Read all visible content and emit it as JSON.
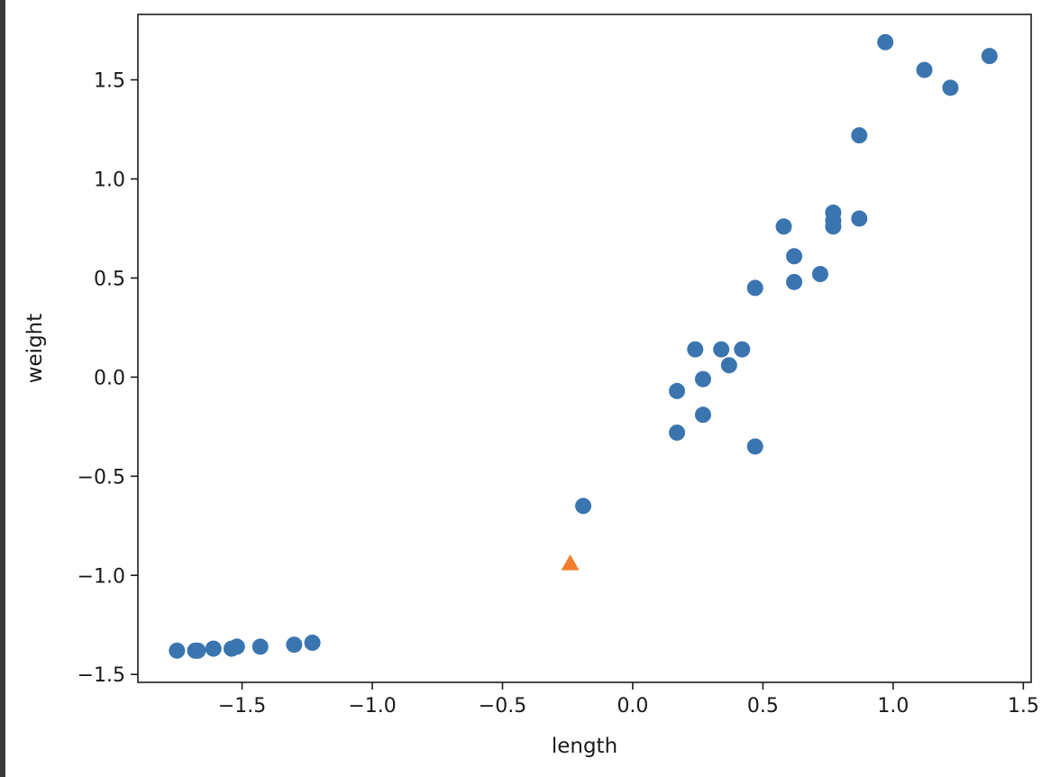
{
  "chart_data": {
    "type": "scatter",
    "title": "",
    "xlabel": "length",
    "ylabel": "weight",
    "xlim": [
      -1.9,
      1.53
    ],
    "ylim": [
      -1.54,
      1.83
    ],
    "grid": false,
    "x_ticks": [
      -1.5,
      -1.0,
      -0.5,
      0.0,
      0.5,
      1.0,
      1.5
    ],
    "x_tick_labels": [
      "−1.5",
      "−1.0",
      "−0.5",
      "0.0",
      "0.5",
      "1.0",
      "1.5"
    ],
    "y_ticks": [
      -1.5,
      -1.0,
      -0.5,
      0.0,
      0.5,
      1.0,
      1.5
    ],
    "y_tick_labels": [
      "−1.5",
      "−1.0",
      "−0.5",
      "0.0",
      "0.5",
      "1.0",
      "1.5"
    ],
    "series": [
      {
        "marker": "circle",
        "color": "#3a75b0",
        "points": [
          [
            -1.75,
            -1.38
          ],
          [
            -1.68,
            -1.38
          ],
          [
            -1.67,
            -1.38
          ],
          [
            -1.61,
            -1.37
          ],
          [
            -1.54,
            -1.37
          ],
          [
            -1.52,
            -1.36
          ],
          [
            -1.43,
            -1.36
          ],
          [
            -1.3,
            -1.35
          ],
          [
            -1.23,
            -1.34
          ],
          [
            -0.19,
            -0.65
          ],
          [
            0.17,
            -0.07
          ],
          [
            0.17,
            -0.28
          ],
          [
            0.24,
            0.14
          ],
          [
            0.27,
            -0.01
          ],
          [
            0.27,
            -0.19
          ],
          [
            0.34,
            0.14
          ],
          [
            0.37,
            0.06
          ],
          [
            0.42,
            0.14
          ],
          [
            0.47,
            0.45
          ],
          [
            0.47,
            -0.35
          ],
          [
            0.58,
            0.76
          ],
          [
            0.62,
            0.61
          ],
          [
            0.62,
            0.48
          ],
          [
            0.72,
            0.52
          ],
          [
            0.77,
            0.83
          ],
          [
            0.77,
            0.79
          ],
          [
            0.77,
            0.76
          ],
          [
            0.87,
            0.8
          ],
          [
            0.87,
            1.22
          ],
          [
            0.97,
            1.69
          ],
          [
            1.12,
            1.55
          ],
          [
            1.22,
            1.46
          ],
          [
            1.37,
            1.62
          ]
        ]
      },
      {
        "marker": "triangle",
        "color": "#f07f2d",
        "points": [
          [
            -0.24,
            -0.94
          ]
        ]
      }
    ]
  }
}
